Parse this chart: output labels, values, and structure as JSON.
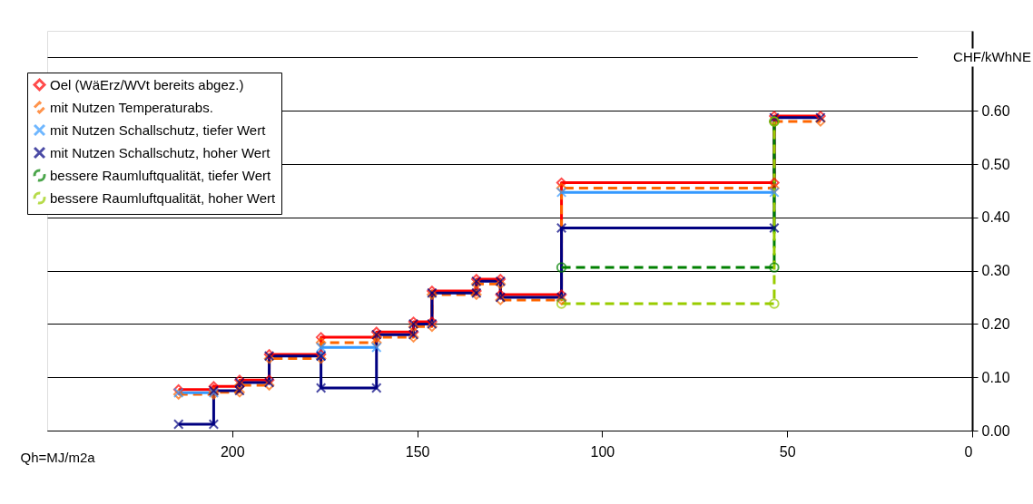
{
  "chart_data": {
    "type": "line",
    "xlabel": "Qh=MJ/m2a",
    "ylabel": "CHF/kWhNE",
    "xlim": [
      250,
      0
    ],
    "xticks": [
      200,
      150,
      100,
      50,
      0
    ],
    "ylim": [
      0,
      0.75
    ],
    "yticks": [
      {
        "value": 0,
        "label": "0.00"
      },
      {
        "value": 0.1,
        "label": "0.10"
      },
      {
        "value": 0.2,
        "label": "0.20"
      },
      {
        "value": 0.3,
        "label": "0.30"
      },
      {
        "value": 0.4,
        "label": "0.40"
      },
      {
        "value": 0.5,
        "label": "0.50"
      },
      {
        "value": 0.6,
        "label": "0.60"
      },
      {
        "value": 0.7,
        "label": null
      }
    ],
    "grid": "y",
    "legend": "top left",
    "series": [
      {
        "name": "Oel (WäErz/WVt bereits abgez.)",
        "color": "#ff0000",
        "marker": "diamond",
        "line_style": "solid",
        "x": [
          214.5,
          205,
          205,
          198,
          198,
          190,
          190,
          176,
          176,
          161,
          161,
          151,
          151,
          146,
          146,
          134,
          134,
          127.5,
          127.5,
          111,
          111,
          53.5,
          53.5,
          41
        ],
        "values": [
          0.077,
          0.077,
          0.083,
          0.083,
          0.095,
          0.095,
          0.143,
          0.143,
          0.175,
          0.175,
          0.185,
          0.185,
          0.204,
          0.204,
          0.262,
          0.262,
          0.284,
          0.284,
          0.255,
          0.255,
          0.465,
          0.465,
          0.59,
          0.59
        ]
      },
      {
        "name": "mit Nutzen Temperaturabs.",
        "color": "#ff6600",
        "marker": "diamond",
        "line_style": "dashed",
        "x": [
          214.5,
          205,
          205,
          198,
          198,
          190,
          190,
          176,
          176,
          161,
          161,
          151,
          151,
          146,
          146,
          134,
          134,
          127.5,
          127.5,
          111,
          111,
          53.5,
          53.5,
          41
        ],
        "values": [
          0.068,
          0.068,
          0.072,
          0.072,
          0.085,
          0.085,
          0.135,
          0.135,
          0.165,
          0.165,
          0.175,
          0.175,
          0.195,
          0.195,
          0.255,
          0.255,
          0.275,
          0.275,
          0.245,
          0.245,
          0.455,
          0.455,
          0.58,
          0.58
        ]
      },
      {
        "name": "mit Nutzen Schallschutz, tiefer Wert",
        "color": "#3399ff",
        "marker": "cross",
        "line_style": "solid",
        "x": [
          214.5,
          205,
          null,
          176,
          176,
          161,
          null,
          111,
          53.5
        ],
        "values": [
          0.071,
          0.071,
          null,
          0.14,
          0.156,
          0.156,
          null,
          0.447,
          0.447
        ]
      },
      {
        "name": "mit Nutzen Schallschutz, hoher Wert",
        "color": "#000080",
        "marker": "cross",
        "line_style": "solid",
        "x": [
          214.5,
          205,
          205,
          198,
          198,
          190,
          190,
          176,
          176,
          161,
          161,
          151,
          151,
          146,
          146,
          134,
          134,
          127.5,
          127.5,
          111,
          111,
          53.5,
          53.5,
          41
        ],
        "values": [
          0.012,
          0.012,
          0.075,
          0.075,
          0.09,
          0.09,
          0.14,
          0.14,
          0.08,
          0.08,
          0.18,
          0.18,
          0.2,
          0.2,
          0.258,
          0.258,
          0.28,
          0.28,
          0.25,
          0.25,
          0.38,
          0.38,
          0.587,
          0.587
        ]
      },
      {
        "name": "bessere Raumluftqualität, tiefer Wert",
        "color": "#008000",
        "marker": "circle",
        "line_style": "dashed",
        "x": [
          111,
          53.5,
          53.5
        ],
        "values": [
          0.306,
          0.306,
          0.58
        ]
      },
      {
        "name": "bessere Raumluftqualität, hoher Wert",
        "color": "#99cc00",
        "marker": "circle",
        "line_style": "dashed",
        "x": [
          111,
          53.5,
          53.5
        ],
        "values": [
          0.238,
          0.238,
          0.58
        ]
      }
    ]
  }
}
